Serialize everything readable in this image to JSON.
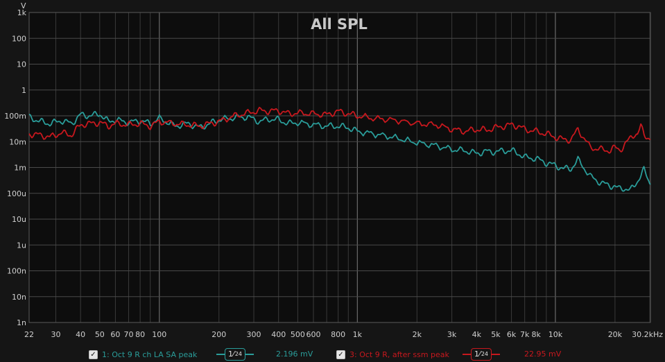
{
  "chart_data": {
    "type": "line",
    "title": "All SPL",
    "y_unit": "V",
    "x_unit": "kHz",
    "y_scale": "log",
    "x_scale": "log",
    "ylim": [
      1e-09,
      1000
    ],
    "xlim": [
      22,
      30200
    ],
    "y_ticks": [
      {
        "v": 1000,
        "label": "1k"
      },
      {
        "v": 100,
        "label": "100"
      },
      {
        "v": 10,
        "label": "10"
      },
      {
        "v": 1,
        "label": "1"
      },
      {
        "v": 0.1,
        "label": "100m"
      },
      {
        "v": 0.01,
        "label": "10m"
      },
      {
        "v": 0.001,
        "label": "1m"
      },
      {
        "v": 0.0001,
        "label": "100u"
      },
      {
        "v": 1e-05,
        "label": "10u"
      },
      {
        "v": 1e-06,
        "label": "1u"
      },
      {
        "v": 1e-07,
        "label": "100n"
      },
      {
        "v": 1e-08,
        "label": "10n"
      },
      {
        "v": 1e-09,
        "label": "1n"
      }
    ],
    "x_ticks": [
      {
        "v": 22,
        "label": "22"
      },
      {
        "v": 30,
        "label": "30"
      },
      {
        "v": 40,
        "label": "40"
      },
      {
        "v": 50,
        "label": "50"
      },
      {
        "v": 60,
        "label": "60"
      },
      {
        "v": 70,
        "label": "70"
      },
      {
        "v": 80,
        "label": "80"
      },
      {
        "v": 100,
        "label": "100"
      },
      {
        "v": 200,
        "label": "200"
      },
      {
        "v": 300,
        "label": "300"
      },
      {
        "v": 400,
        "label": "400"
      },
      {
        "v": 500,
        "label": "500"
      },
      {
        "v": 600,
        "label": "600"
      },
      {
        "v": 800,
        "label": "800"
      },
      {
        "v": 1000,
        "label": "1k"
      },
      {
        "v": 2000,
        "label": "2k"
      },
      {
        "v": 3000,
        "label": "3k"
      },
      {
        "v": 4000,
        "label": "4k"
      },
      {
        "v": 5000,
        "label": "5k"
      },
      {
        "v": 6000,
        "label": "6k"
      },
      {
        "v": 7000,
        "label": "7k"
      },
      {
        "v": 8000,
        "label": "8k"
      },
      {
        "v": 10000,
        "label": "10k"
      },
      {
        "v": 20000,
        "label": "20k"
      },
      {
        "v": 30200,
        "label": "30.2kHz"
      }
    ],
    "grid": true,
    "series": [
      {
        "name": "1: Oct 9 R ch LA SA peak",
        "color": "#2a9d9a",
        "smoothing_label": "1⁄",
        "smoothing_sub": "24",
        "readout": "2.196 mV",
        "checked": true,
        "x": [
          22,
          25,
          28,
          32,
          36,
          40,
          45,
          50,
          55,
          60,
          70,
          80,
          90,
          100,
          120,
          140,
          160,
          180,
          200,
          240,
          280,
          320,
          360,
          400,
          450,
          500,
          600,
          700,
          800,
          900,
          1000,
          1200,
          1500,
          2000,
          2500,
          3000,
          3500,
          4000,
          4500,
          5000,
          5500,
          6000,
          6500,
          7000,
          8000,
          9000,
          10000,
          11000,
          12000,
          13000,
          15000,
          17000,
          19000,
          20000,
          21000,
          22000,
          24000,
          25000,
          26000,
          27000,
          28000,
          30200
        ],
        "y": [
          0.09,
          0.06,
          0.05,
          0.065,
          0.05,
          0.11,
          0.1,
          0.12,
          0.06,
          0.07,
          0.055,
          0.065,
          0.05,
          0.08,
          0.04,
          0.05,
          0.035,
          0.05,
          0.07,
          0.085,
          0.09,
          0.06,
          0.075,
          0.07,
          0.05,
          0.055,
          0.045,
          0.04,
          0.04,
          0.035,
          0.025,
          0.02,
          0.015,
          0.009,
          0.007,
          0.005,
          0.0045,
          0.0035,
          0.0042,
          0.004,
          0.0045,
          0.0045,
          0.0035,
          0.0025,
          0.0022,
          0.0015,
          0.0012,
          0.0009,
          0.0009,
          0.002,
          0.00045,
          0.00025,
          0.0002,
          0.00018,
          0.00015,
          0.00016,
          0.00013,
          0.0002,
          0.0003,
          0.0005,
          0.0008,
          0.00022
        ]
      },
      {
        "name": "3: Oct 9 R, after ssm peak",
        "color": "#c8181e",
        "smoothing_label": "1⁄",
        "smoothing_sub": "24",
        "readout": "22.95 mV",
        "checked": true,
        "x": [
          22,
          25,
          28,
          32,
          36,
          40,
          45,
          50,
          55,
          60,
          70,
          80,
          90,
          100,
          120,
          140,
          160,
          180,
          200,
          240,
          280,
          320,
          360,
          400,
          450,
          500,
          600,
          700,
          800,
          900,
          1000,
          1200,
          1500,
          2000,
          2500,
          3000,
          3500,
          4000,
          4500,
          5000,
          5500,
          6000,
          6500,
          7000,
          8000,
          9000,
          10000,
          11000,
          12000,
          13000,
          15000,
          17000,
          19000,
          20000,
          21000,
          22000,
          24000,
          25000,
          26000,
          27000,
          28000,
          30200
        ],
        "y": [
          0.02,
          0.018,
          0.015,
          0.022,
          0.018,
          0.045,
          0.05,
          0.055,
          0.04,
          0.05,
          0.045,
          0.05,
          0.04,
          0.06,
          0.05,
          0.045,
          0.04,
          0.05,
          0.06,
          0.1,
          0.13,
          0.16,
          0.15,
          0.16,
          0.12,
          0.13,
          0.12,
          0.11,
          0.15,
          0.12,
          0.1,
          0.08,
          0.07,
          0.05,
          0.045,
          0.03,
          0.025,
          0.03,
          0.028,
          0.035,
          0.04,
          0.045,
          0.04,
          0.03,
          0.025,
          0.02,
          0.015,
          0.012,
          0.012,
          0.03,
          0.006,
          0.005,
          0.0045,
          0.006,
          0.005,
          0.006,
          0.015,
          0.02,
          0.018,
          0.04,
          0.02,
          0.012
        ]
      }
    ]
  }
}
